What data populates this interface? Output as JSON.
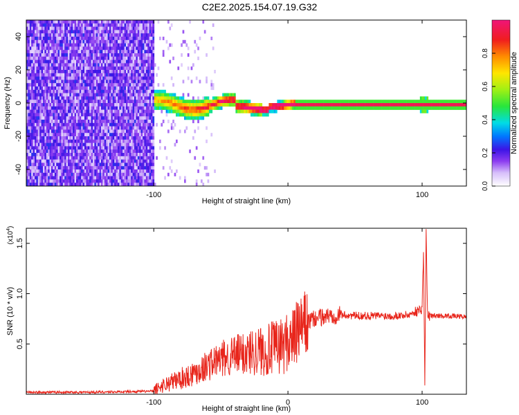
{
  "figure": {
    "title": "C2E2.2025.154.07.19.G32"
  },
  "chart_data": [
    {
      "type": "heatmap",
      "xlabel": "Height of straight line (km)",
      "ylabel": "Frequency (Hz)",
      "xlim": [
        -195,
        133
      ],
      "ylim": [
        -50,
        50
      ],
      "x_ticks": [
        -100,
        0,
        100
      ],
      "x_tick_labels": [
        "-100",
        "",
        "100"
      ],
      "y_ticks": [
        -40,
        -20,
        0,
        20,
        40
      ],
      "y_tick_labels": [
        "-40",
        "-20",
        "0",
        "20",
        "40"
      ],
      "colorbar": {
        "label": "Normalized spectral amplitude",
        "range": [
          0,
          1
        ],
        "ticks": [
          0.0,
          0.2,
          0.4,
          0.6,
          0.8
        ],
        "tick_labels": [
          "0.0",
          "0.2",
          "0.4",
          "0.6",
          "0.8"
        ]
      },
      "regions": [
        {
          "x_range": [
            -195,
            -100
          ],
          "description_value": "broadband noise",
          "amplitude_range": [
            0.05,
            0.3
          ]
        },
        {
          "x_range": [
            -100,
            -5
          ],
          "description_value": "signal band near 0 Hz",
          "amplitude_range": [
            0.3,
            0.9
          ]
        },
        {
          "x_range": [
            -5,
            133
          ],
          "description_value": "carrier at 0 Hz",
          "amplitude_range": [
            0.9,
            1.0
          ]
        }
      ],
      "carrier_frequency_hz": 0,
      "grid": false
    },
    {
      "type": "line",
      "xlabel": "Height of straight line (km)",
      "ylabel": "SNR (10 * v/v)",
      "multiplier_label": "(x10",
      "multiplier_exponent": "4",
      "xlim": [
        -195,
        133
      ],
      "ylim": [
        0,
        1.65
      ],
      "x_ticks": [
        -100,
        0,
        100
      ],
      "x_tick_labels": [
        "-100",
        "0",
        "100"
      ],
      "y_ticks": [
        0.5,
        1.0,
        1.5
      ],
      "y_tick_labels": [
        "0.5",
        "1.0",
        "1.5"
      ],
      "color": "#e8251b",
      "series": [
        {
          "x": [
            -195,
            -150,
            -100,
            -95,
            -85,
            -75,
            -65,
            -55,
            -45,
            -35,
            -25,
            -15,
            -5,
            0,
            5,
            10,
            15,
            20,
            30,
            40,
            50,
            60,
            70,
            80,
            90,
            95,
            100,
            101,
            102,
            103,
            104,
            106,
            110,
            120,
            133
          ],
          "y": [
            0.02,
            0.02,
            0.03,
            0.08,
            0.13,
            0.18,
            0.25,
            0.32,
            0.37,
            0.4,
            0.43,
            0.44,
            0.48,
            0.52,
            0.58,
            0.66,
            0.72,
            0.75,
            0.78,
            0.79,
            0.78,
            0.78,
            0.78,
            0.78,
            0.79,
            0.82,
            0.85,
            1.45,
            0.1,
            1.65,
            0.78,
            0.78,
            0.78,
            0.78,
            0.77
          ]
        }
      ],
      "grid": false
    }
  ]
}
